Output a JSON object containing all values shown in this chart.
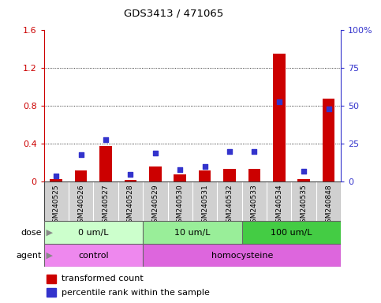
{
  "title": "GDS3413 / 471065",
  "samples": [
    "GSM240525",
    "GSM240526",
    "GSM240527",
    "GSM240528",
    "GSM240529",
    "GSM240530",
    "GSM240531",
    "GSM240532",
    "GSM240533",
    "GSM240534",
    "GSM240535",
    "GSM240848"
  ],
  "transformed_count": [
    0.03,
    0.12,
    0.38,
    0.02,
    0.16,
    0.08,
    0.12,
    0.14,
    0.14,
    1.35,
    0.03,
    0.88
  ],
  "percentile_rank": [
    4,
    18,
    28,
    5,
    19,
    8,
    10,
    20,
    20,
    53,
    7,
    48
  ],
  "ylim_left": [
    0,
    1.6
  ],
  "ylim_right": [
    0,
    100
  ],
  "yticks_left": [
    0.0,
    0.4,
    0.8,
    1.2,
    1.6
  ],
  "yticks_right": [
    0,
    25,
    50,
    75,
    100
  ],
  "ytick_labels_left": [
    "0",
    "0.4",
    "0.8",
    "1.2",
    "1.6"
  ],
  "ytick_labels_right": [
    "0",
    "25",
    "50",
    "75",
    "100%"
  ],
  "bar_color": "#cc0000",
  "square_color": "#3333cc",
  "dose_groups": [
    {
      "label": "0 um/L",
      "start": 0,
      "end": 4,
      "color": "#ccffcc"
    },
    {
      "label": "10 um/L",
      "start": 4,
      "end": 8,
      "color": "#99ee99"
    },
    {
      "label": "100 um/L",
      "start": 8,
      "end": 12,
      "color": "#44cc44"
    }
  ],
  "agent_groups": [
    {
      "label": "control",
      "start": 0,
      "end": 4,
      "color": "#ee88ee"
    },
    {
      "label": "homocysteine",
      "start": 4,
      "end": 12,
      "color": "#dd66dd"
    }
  ],
  "dose_label": "dose",
  "agent_label": "agent",
  "legend_bar_label": "transformed count",
  "legend_sq_label": "percentile rank within the sample",
  "bg_color": "#ffffff",
  "tick_bg_color": "#d0d0d0",
  "border_color": "#888888"
}
